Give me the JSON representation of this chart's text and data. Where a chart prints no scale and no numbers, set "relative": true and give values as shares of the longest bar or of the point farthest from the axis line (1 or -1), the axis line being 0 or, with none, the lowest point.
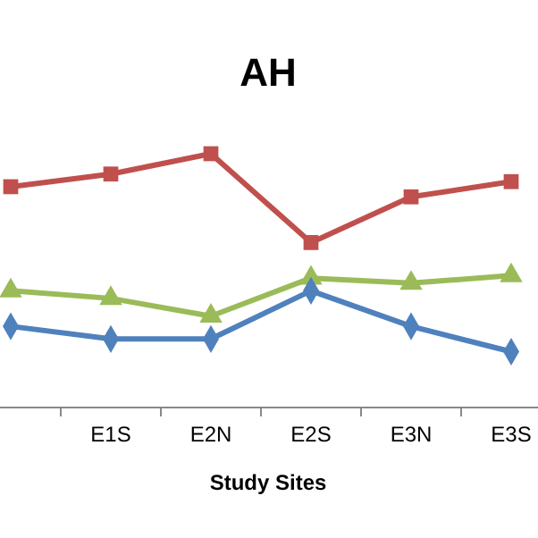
{
  "chart_data": {
    "type": "line",
    "title": "AH",
    "xlabel": "Study Sites",
    "relative": true,
    "categories": [
      null,
      "E1S",
      "E2N",
      "E2S",
      "E3N",
      "E3S"
    ],
    "series": [
      {
        "color": "#c0504d",
        "marker": "square",
        "values": [
          0.87,
          0.92,
          1,
          0.65,
          0.83,
          0.89
        ]
      },
      {
        "color": "#9bbb59",
        "marker": "triangle",
        "values": [
          0.46,
          0.43,
          0.36,
          0.51,
          0.49,
          0.52
        ]
      },
      {
        "color": "#4f81bd",
        "marker": "diamond",
        "values": [
          0.32,
          0.27,
          0.27,
          0.46,
          0.32,
          0.22
        ]
      }
    ]
  }
}
